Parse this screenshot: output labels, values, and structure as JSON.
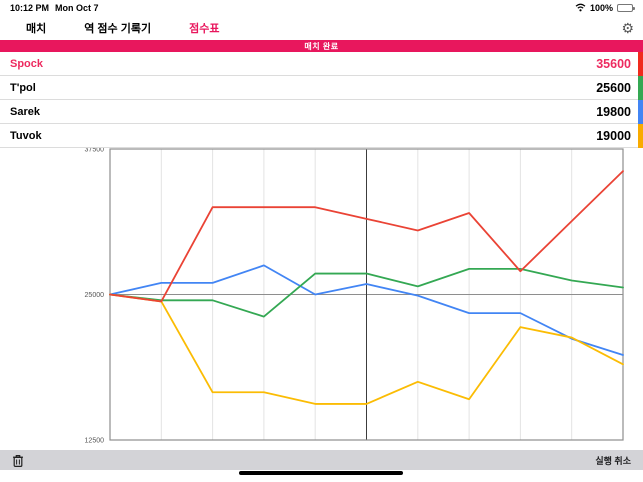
{
  "status_bar": {
    "time": "10:12 PM",
    "date": "Mon Oct 7",
    "battery": "100%"
  },
  "tab_bar": {
    "tabs": [
      {
        "label": "매치",
        "selected": false
      },
      {
        "label": "역 점수 기록기",
        "selected": false
      },
      {
        "label": "점수표",
        "selected": true
      }
    ]
  },
  "banner": {
    "text": "매치 완료"
  },
  "players": [
    {
      "name": "Spock",
      "score": "35600",
      "color": "#F02B1D",
      "text_color": "#ED2A5F"
    },
    {
      "name": "T'pol",
      "score": "25600",
      "color": "#34A853",
      "text_color": "#000000"
    },
    {
      "name": "Sarek",
      "score": "19800",
      "color": "#4285F4",
      "text_color": "#000000"
    },
    {
      "name": "Tuvok",
      "score": "19000",
      "color": "#F9AB00",
      "text_color": "#000000"
    }
  ],
  "chart_data": {
    "type": "line",
    "title": "",
    "xlabel": "",
    "ylabel": "",
    "x": [
      0,
      1,
      2,
      3,
      4,
      5,
      6,
      7,
      8,
      9,
      10
    ],
    "ylim": [
      12500,
      37500
    ],
    "yticks": [
      37500,
      25000,
      12500
    ],
    "grid": "vertical",
    "midline_value": 25000,
    "current_marker_index": 5,
    "legend": "none",
    "draw_order": [
      2,
      1,
      3,
      0
    ],
    "series": [
      {
        "name": "Spock",
        "color": "#EA4335",
        "values": [
          25000,
          24400,
          32500,
          32500,
          32500,
          31500,
          30500,
          32000,
          27000,
          31300,
          35600
        ]
      },
      {
        "name": "T'pol",
        "color": "#34A853",
        "values": [
          25000,
          24500,
          24500,
          23100,
          26800,
          26800,
          25700,
          27200,
          27200,
          26200,
          25600
        ]
      },
      {
        "name": "Sarek",
        "color": "#4285F4",
        "values": [
          25000,
          26000,
          26000,
          27500,
          25000,
          25900,
          24900,
          23400,
          23400,
          21200,
          19800
        ]
      },
      {
        "name": "Tuvok",
        "color": "#FBBC04",
        "values": [
          25000,
          24400,
          16600,
          16600,
          15600,
          15600,
          17500,
          16000,
          22200,
          21300,
          19000
        ]
      }
    ]
  },
  "toolbar": {
    "undo_label": "실행 취소"
  },
  "colors": {
    "accent_pink": "#E8175D",
    "grid": "#E3E3E3",
    "axis": "#8E8E8E",
    "marker": "#3C3C3C"
  }
}
